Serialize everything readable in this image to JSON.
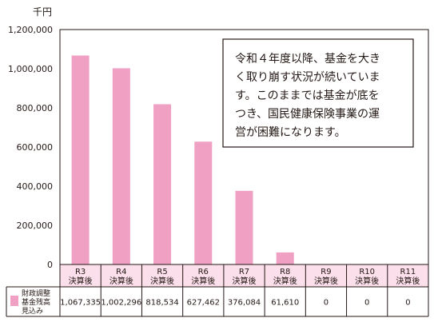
{
  "chart_data": {
    "type": "bar",
    "y_unit": "千円",
    "ylim": [
      0,
      1200000
    ],
    "y_ticks": [
      0,
      200000,
      400000,
      600000,
      800000,
      1000000,
      1200000
    ],
    "y_tick_labels": [
      "0",
      "200,000",
      "400,000",
      "600,000",
      "800,000",
      "1,000,000",
      "1,200,000"
    ],
    "grid": false,
    "categories": [
      {
        "line1": "R3",
        "line2": "決算後"
      },
      {
        "line1": "R4",
        "line2": "決算後"
      },
      {
        "line1": "R5",
        "line2": "決算後"
      },
      {
        "line1": "R6",
        "line2": "決算後"
      },
      {
        "line1": "R7",
        "line2": "決算後"
      },
      {
        "line1": "R8",
        "line2": "決算後"
      },
      {
        "line1": "R9",
        "line2": "決算後"
      },
      {
        "line1": "R10",
        "line2": "決算後"
      },
      {
        "line1": "R11",
        "line2": "決算後"
      }
    ],
    "series": [
      {
        "name_lines": [
          "財政調整",
          "基金残高",
          "見込み"
        ],
        "color": "#f0a0c3",
        "values": [
          1067335,
          1002296,
          818534,
          627462,
          376084,
          61610,
          0,
          0,
          0
        ],
        "value_labels": [
          "1,067,335",
          "1,002,296",
          "818,534",
          "627,462",
          "376,084",
          "61,610",
          "0",
          "0",
          "0"
        ]
      }
    ],
    "annotation": [
      "令和４年度以降、基金を大き",
      "く取り崩す状況が続いていま",
      "す。このままでは基金が底を",
      "つき、国民健康保険事業の運",
      "営が困難になります。"
    ],
    "header_fill": "#fbdfea",
    "text_color": "#231815"
  }
}
